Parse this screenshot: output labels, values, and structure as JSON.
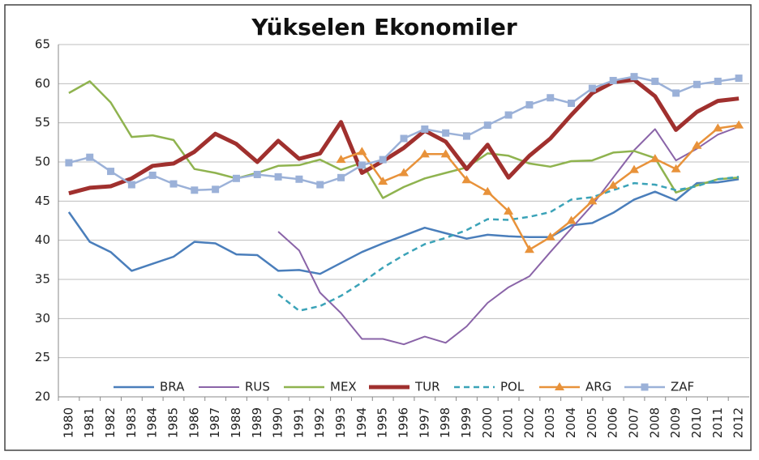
{
  "chart_data": {
    "type": "line",
    "title": "Yükselen Ekonomiler",
    "categories": [
      "1980",
      "1981",
      "1982",
      "1983",
      "1984",
      "1985",
      "1986",
      "1987",
      "1988",
      "1989",
      "1990",
      "1991",
      "1992",
      "1993",
      "1994",
      "1995",
      "1996",
      "1997",
      "1998",
      "1999",
      "2000",
      "2001",
      "2002",
      "2003",
      "2004",
      "2005",
      "2006",
      "2007",
      "2008",
      "2009",
      "2010",
      "2011",
      "2012"
    ],
    "ylim": [
      20,
      65
    ],
    "yticks": [
      20,
      25,
      30,
      35,
      40,
      45,
      50,
      55,
      60,
      65
    ],
    "grid": true,
    "legend": "bottom",
    "series": [
      {
        "name": "BRA",
        "color": "#4a7ebb",
        "line_width": 2.5,
        "values": [
          43.6,
          39.8,
          38.5,
          36.1,
          37.0,
          37.9,
          39.8,
          39.6,
          38.2,
          38.1,
          36.1,
          36.2,
          35.7,
          37.1,
          38.5,
          39.6,
          40.6,
          41.6,
          40.9,
          40.2,
          40.7,
          40.5,
          40.4,
          40.4,
          41.9,
          42.2,
          43.5,
          45.2,
          46.2,
          45.1,
          47.3,
          47.4,
          47.8
        ]
      },
      {
        "name": "RUS",
        "color": "#8a64a8",
        "line_width": 2,
        "values": [
          null,
          null,
          null,
          null,
          null,
          null,
          null,
          null,
          null,
          null,
          41.1,
          38.7,
          33.3,
          30.7,
          27.4,
          27.4,
          26.7,
          27.7,
          26.9,
          29.0,
          32.0,
          34.0,
          35.4,
          38.5,
          41.5,
          44.5,
          48.0,
          51.5,
          54.2,
          50.2,
          51.7,
          53.5,
          54.5
        ]
      },
      {
        "name": "MEX",
        "color": "#8fb34f",
        "line_width": 2.5,
        "values": [
          58.8,
          60.3,
          57.6,
          53.2,
          53.4,
          52.8,
          49.1,
          48.6,
          47.9,
          48.6,
          49.5,
          49.6,
          50.3,
          49.0,
          49.9,
          45.4,
          46.8,
          47.9,
          48.6,
          49.3,
          51.1,
          50.8,
          49.8,
          49.4,
          50.1,
          50.2,
          51.2,
          51.4,
          50.5,
          46.1,
          47.0,
          47.8,
          48.0
        ]
      },
      {
        "name": "TUR",
        "color": "#a0302e",
        "line_width": 5,
        "values": [
          46.0,
          46.7,
          46.9,
          47.9,
          49.5,
          49.8,
          51.3,
          53.6,
          52.3,
          50.0,
          52.7,
          50.4,
          51.1,
          55.1,
          48.6,
          50.1,
          51.8,
          54.0,
          52.6,
          49.1,
          52.2,
          48.0,
          50.8,
          53.0,
          56.0,
          58.8,
          60.2,
          60.5,
          58.4,
          54.1,
          56.4,
          57.8,
          58.1
        ]
      },
      {
        "name": "POL",
        "color": "#3ba3b8",
        "line_width": 2.5,
        "dash": "dashed",
        "values": [
          null,
          null,
          null,
          null,
          null,
          null,
          null,
          null,
          null,
          null,
          33.1,
          31.0,
          31.6,
          32.9,
          34.6,
          36.5,
          38.1,
          39.5,
          40.3,
          41.3,
          42.7,
          42.6,
          43.0,
          43.6,
          45.2,
          45.5,
          46.4,
          47.3,
          47.1,
          46.4,
          46.9,
          47.8,
          48.1
        ]
      },
      {
        "name": "ARG",
        "color": "#e8923a",
        "line_width": 2.5,
        "marker": "triangle",
        "values": [
          null,
          null,
          null,
          null,
          null,
          null,
          null,
          null,
          null,
          null,
          null,
          null,
          null,
          50.3,
          51.3,
          47.5,
          48.6,
          51.0,
          51.0,
          47.7,
          46.2,
          43.7,
          38.8,
          40.4,
          42.5,
          45.0,
          47.0,
          49.0,
          50.4,
          49.1,
          52.1,
          54.3,
          54.7
        ]
      },
      {
        "name": "ZAF",
        "color": "#9bb1d8",
        "line_width": 2.5,
        "marker": "square",
        "values": [
          49.9,
          50.6,
          48.8,
          47.1,
          48.3,
          47.2,
          46.4,
          46.5,
          47.9,
          48.4,
          48.1,
          47.8,
          47.1,
          48.0,
          49.6,
          50.3,
          53.0,
          54.2,
          53.7,
          53.3,
          54.7,
          56.0,
          57.3,
          58.2,
          57.5,
          59.4,
          60.4,
          60.9,
          60.3,
          58.8,
          59.9,
          60.3,
          60.7
        ]
      }
    ]
  }
}
